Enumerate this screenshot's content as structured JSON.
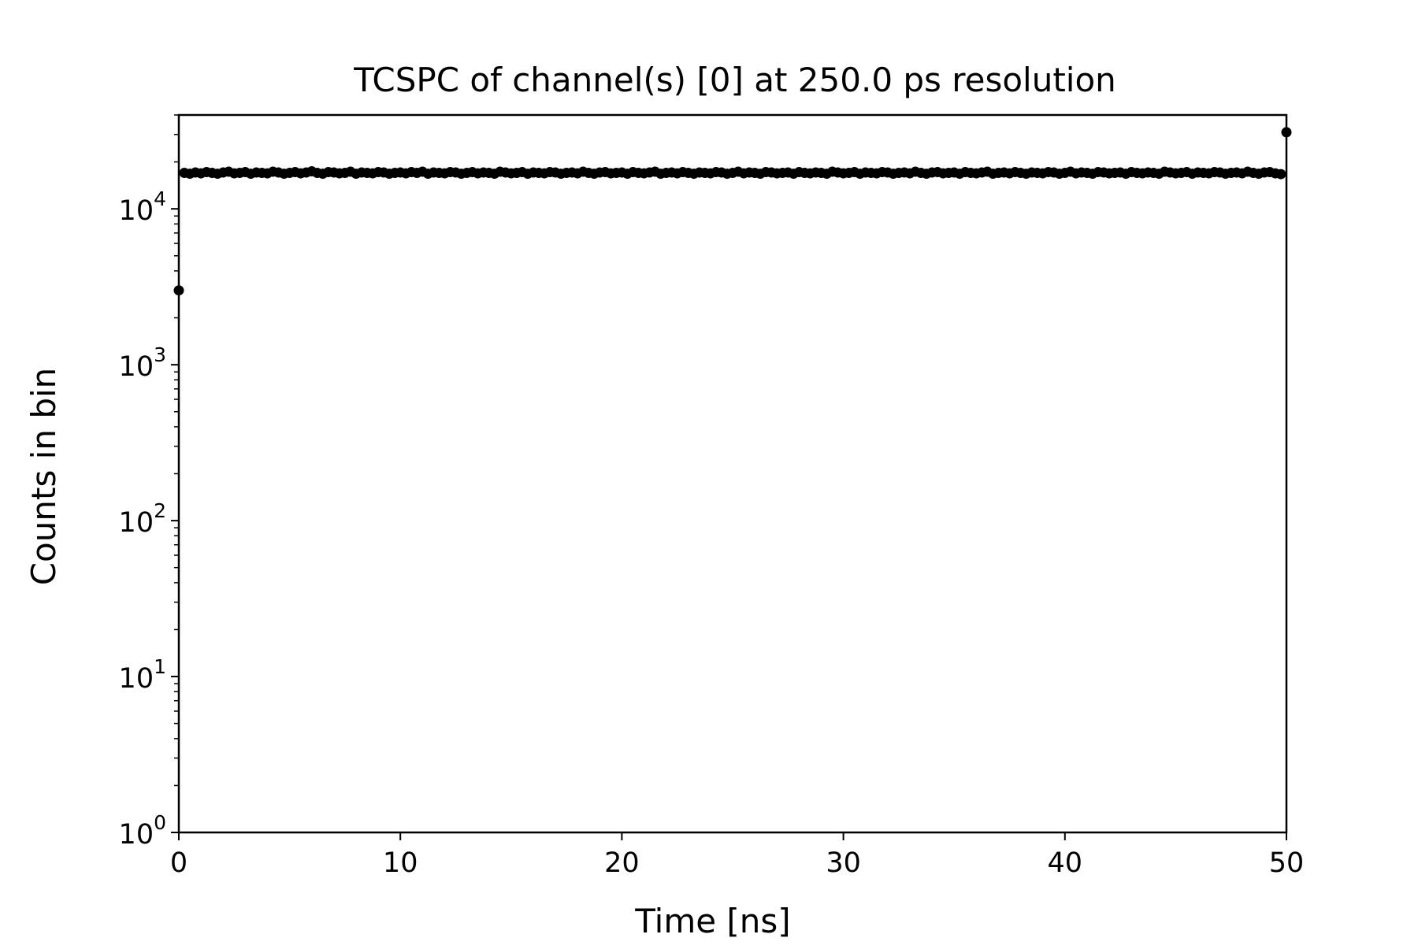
{
  "chart_data": {
    "type": "scatter",
    "title": "TCSPC of channel(s) [0] at 250.0 ps resolution",
    "xlabel": "Time [ns]",
    "ylabel": "Counts in bin",
    "xlim": [
      0,
      50
    ],
    "ylim": [
      1,
      40000
    ],
    "yscale": "log",
    "grid": false,
    "legend": "none",
    "marker_color": "#000000",
    "x_ticks": [
      {
        "value": 0,
        "label": "0"
      },
      {
        "value": 10,
        "label": "10"
      },
      {
        "value": 20,
        "label": "20"
      },
      {
        "value": 30,
        "label": "30"
      },
      {
        "value": 40,
        "label": "40"
      },
      {
        "value": 50,
        "label": "50"
      }
    ],
    "y_ticks": [
      {
        "value": 1,
        "base": "10",
        "exp": "0"
      },
      {
        "value": 10,
        "base": "10",
        "exp": "1"
      },
      {
        "value": 100,
        "base": "10",
        "exp": "2"
      },
      {
        "value": 1000,
        "base": "10",
        "exp": "3"
      },
      {
        "value": 10000,
        "base": "10",
        "exp": "4"
      }
    ],
    "series": [
      {
        "bin_width_ns": 0.25,
        "first_bin_ns": 0,
        "values": [
          3000,
          17000,
          16800,
          17100,
          16900,
          17200,
          17000,
          16800,
          17100,
          17300,
          16900,
          17000,
          17200,
          16800,
          17100,
          17000,
          16900,
          17300,
          17100,
          16800,
          17000,
          17200,
          16900,
          17100,
          17400,
          17000,
          16800,
          17200,
          17100,
          16900,
          17000,
          17300,
          16800,
          17100,
          17000,
          16900,
          17200,
          17100,
          16800,
          17000,
          17100,
          16900,
          17200,
          17000,
          17300,
          16800,
          17100,
          17000,
          16900,
          17200,
          17100,
          16800,
          17000,
          17200,
          16900,
          17100,
          17000,
          16800,
          17300,
          17100,
          16900,
          17000,
          17200,
          16800,
          17100,
          17000,
          16900,
          17200,
          17100,
          16800,
          17000,
          17100,
          16900,
          17300,
          17000,
          16800,
          17100,
          17200,
          16900,
          17000,
          17100,
          16800,
          17200,
          17000,
          16900,
          17100,
          17300,
          16800,
          17000,
          17100,
          16900,
          17200,
          17000,
          16800,
          17100,
          17000,
          16900,
          17200,
          17100,
          16800,
          17000,
          17300,
          16900,
          17100,
          17000,
          16800,
          17200,
          17100,
          16900,
          17000,
          17100,
          16800,
          17200,
          17000,
          16900,
          17100,
          17000,
          16800,
          17300,
          17100,
          16900,
          17000,
          17200,
          16800,
          17100,
          17000,
          16900,
          17200,
          17100,
          16800,
          17000,
          17100,
          16900,
          17300,
          17000,
          16800,
          17100,
          17200,
          16900,
          17000,
          17100,
          16800,
          17200,
          17000,
          16900,
          17100,
          17300,
          16800,
          17000,
          17100,
          16900,
          17200,
          17000,
          16800,
          17100,
          17000,
          16900,
          17200,
          17100,
          16800,
          17000,
          17300,
          16900,
          17100,
          17000,
          16800,
          17200,
          17100,
          16900,
          17000,
          17100,
          16800,
          17200,
          17000,
          16900,
          17100,
          17000,
          16800,
          17300,
          17100,
          16900,
          17000,
          17200,
          16800,
          17100,
          17000,
          16900,
          17200,
          17100,
          16800,
          17000,
          17100,
          16900,
          17300,
          17000,
          16800,
          17100,
          17200,
          16900,
          16700,
          31000
        ]
      }
    ]
  }
}
